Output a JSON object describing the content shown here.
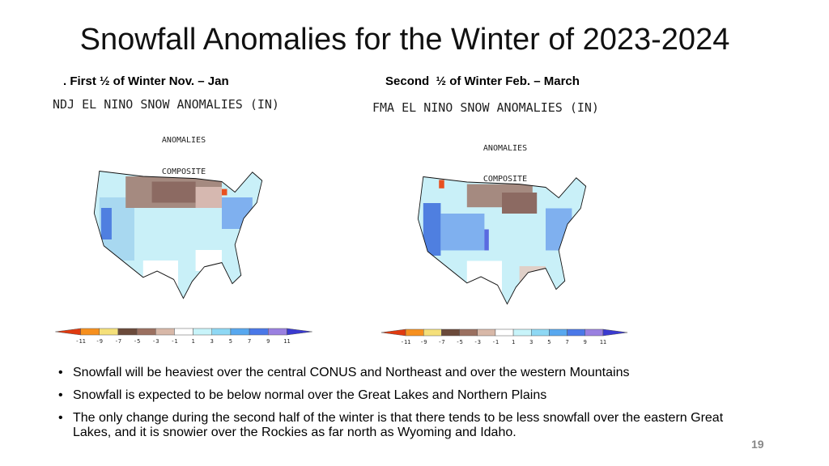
{
  "title": "Snowfall Anomalies for the Winter of 2023-2024",
  "panels": [
    {
      "heading": ". First ½ of Winter Nov. – Jan",
      "map_title": "NDJ EL NINO SNOW ANOMALIES (IN)",
      "label1": "ANOMALIES",
      "label2": "COMPOSITE",
      "scale_labels": [
        "-11",
        "-9",
        "-7",
        "-5",
        "-3",
        "-1",
        "1",
        "3",
        "5",
        "7",
        "9",
        "11"
      ]
    },
    {
      "heading": "Second  ½ of Winter Feb. – March",
      "map_title": "FMA EL NINO SNOW ANOMALIES (IN)",
      "label1": "ANOMALIES",
      "label2": "COMPOSITE",
      "scale_labels": [
        "-11",
        "-9",
        "-7",
        "-5",
        "-3",
        "-1",
        "1",
        "3",
        "5",
        "7",
        "9",
        "11"
      ]
    }
  ],
  "bullets": [
    "Snowfall will be heaviest over the central CONUS and Northeast and over the western Mountains",
    "Snowfall is expected to be below normal over the Great Lakes and Northern Plains",
    "The only change during the second half of the winter is that there tends to be less snowfall over the eastern Great Lakes, and it is snowier over the Rockies as far north as Wyoming and Idaho."
  ],
  "page_number": "19"
}
